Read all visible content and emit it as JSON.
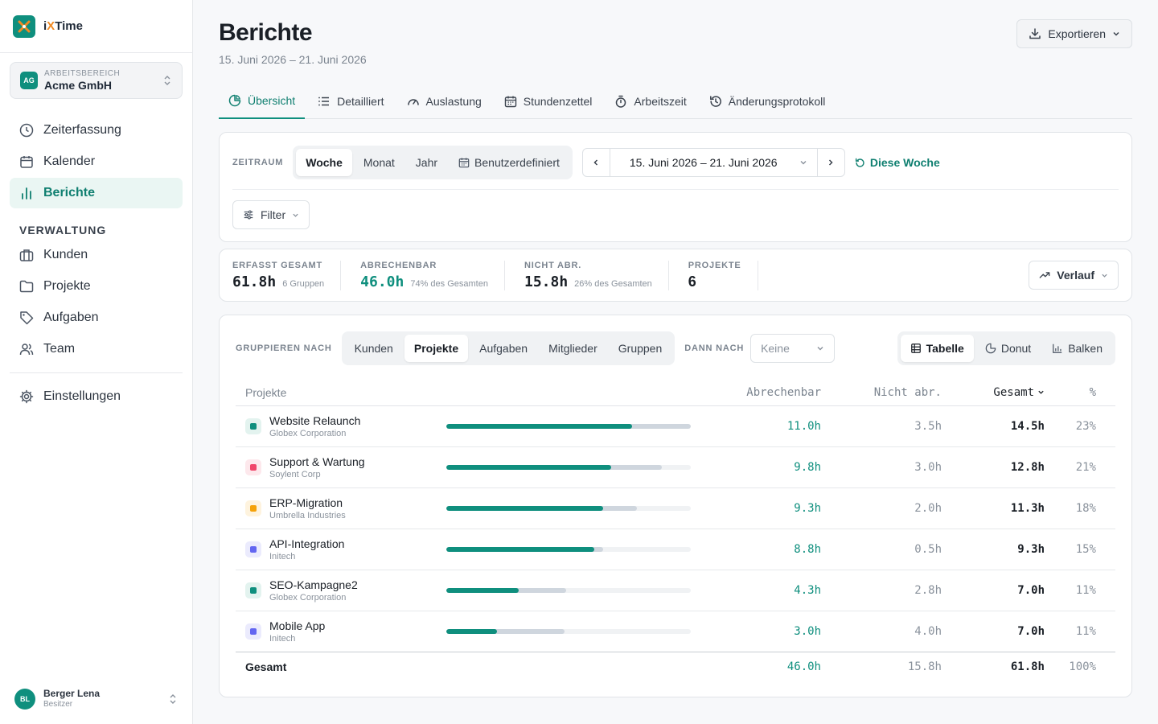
{
  "app": {
    "brand_prefix": "i",
    "brand_x": "X",
    "brand_suffix": "Time"
  },
  "workspace": {
    "label": "ARBEITSBEREICH",
    "name": "Acme GmbH",
    "initials": "AG"
  },
  "nav": {
    "items": [
      {
        "label": "Zeiterfassung",
        "icon": "clock-icon"
      },
      {
        "label": "Kalender",
        "icon": "calendar-icon"
      },
      {
        "label": "Berichte",
        "icon": "bar-chart-icon",
        "active": true
      }
    ],
    "section": "VERWALTUNG",
    "admin": [
      {
        "label": "Kunden",
        "icon": "briefcase-icon"
      },
      {
        "label": "Projekte",
        "icon": "folder-icon"
      },
      {
        "label": "Aufgaben",
        "icon": "tag-icon"
      },
      {
        "label": "Team",
        "icon": "users-icon"
      }
    ],
    "settings": "Einstellungen"
  },
  "user": {
    "initials": "BL",
    "name": "Berger Lena",
    "role": "Besitzer"
  },
  "page": {
    "title": "Berichte",
    "subtitle": "15. Juni 2026 – 21. Juni 2026",
    "export": "Exportieren"
  },
  "tabs": [
    "Übersicht",
    "Detailliert",
    "Auslastung",
    "Stundenzettel",
    "Arbeitszeit",
    "Änderungsprotokoll"
  ],
  "period": {
    "label": "ZEITRAUM",
    "options": [
      "Woche",
      "Monat",
      "Jahr",
      "Benutzerdefiniert"
    ],
    "range": "15. Juni 2026 – 21. Juni 2026",
    "this_week": "Diese Woche",
    "filter": "Filter"
  },
  "stats": {
    "total_label": "ERFASST GESAMT",
    "total_value": "61.8h",
    "total_note": "6 Gruppen",
    "billable_label": "ABRECHENBAR",
    "billable_value": "46.0h",
    "billable_note": "74% des Gesamten",
    "non_label": "NICHT ABR.",
    "non_value": "15.8h",
    "non_note": "26% des Gesamten",
    "projects_label": "PROJEKTE",
    "projects_value": "6",
    "trend": "Verlauf"
  },
  "grouping": {
    "label": "GRUPPIEREN NACH",
    "options": [
      "Kunden",
      "Projekte",
      "Aufgaben",
      "Mitglieder",
      "Gruppen"
    ],
    "then_label": "DANN NACH",
    "then_value": "Keine",
    "views": [
      "Tabelle",
      "Donut",
      "Balken"
    ]
  },
  "table": {
    "headers": {
      "name": "Projekte",
      "billable": "Abrechenbar",
      "non": "Nicht abr.",
      "total": "Gesamt",
      "pct": "%"
    },
    "rows": [
      {
        "name": "Website Relaunch",
        "client": "Globex Corporation",
        "color": "#0f8f7e",
        "tint": "#e3f3ef",
        "billable": "11.0h",
        "non": "3.5h",
        "total": "14.5h",
        "pct": "23%",
        "b": 11.0,
        "n": 3.5
      },
      {
        "name": "Support & Wartung",
        "client": "Soylent Corp",
        "color": "#f0466a",
        "tint": "#fde8ec",
        "billable": "9.8h",
        "non": "3.0h",
        "total": "12.8h",
        "pct": "21%",
        "b": 9.8,
        "n": 3.0
      },
      {
        "name": "ERP-Migration",
        "client": "Umbrella Industries",
        "color": "#f5a20a",
        "tint": "#fef3de",
        "billable": "9.3h",
        "non": "2.0h",
        "total": "11.3h",
        "pct": "18%",
        "b": 9.3,
        "n": 2.0
      },
      {
        "name": "API-Integration",
        "client": "Initech",
        "color": "#6366f1",
        "tint": "#ebebfd",
        "billable": "8.8h",
        "non": "0.5h",
        "total": "9.3h",
        "pct": "15%",
        "b": 8.8,
        "n": 0.5
      },
      {
        "name": "SEO-Kampagne2",
        "client": "Globex Corporation",
        "color": "#0f8f7e",
        "tint": "#e3f3ef",
        "billable": "4.3h",
        "non": "2.8h",
        "total": "7.0h",
        "pct": "11%",
        "b": 4.3,
        "n": 2.8
      },
      {
        "name": "Mobile App",
        "client": "Initech",
        "color": "#6366f1",
        "tint": "#ebebfd",
        "billable": "3.0h",
        "non": "4.0h",
        "total": "7.0h",
        "pct": "11%",
        "b": 3.0,
        "n": 4.0
      }
    ],
    "max_total": 14.5,
    "total": {
      "label": "Gesamt",
      "billable": "46.0h",
      "non": "15.8h",
      "total": "61.8h",
      "pct": "100%"
    }
  }
}
